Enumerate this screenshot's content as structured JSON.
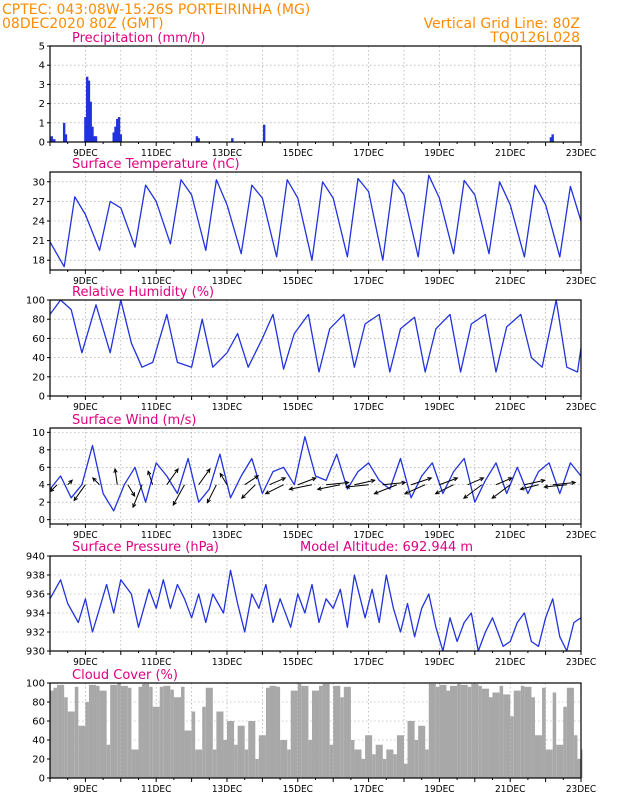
{
  "header": {
    "line1": "CPTEC:  043:08W-15:26S  PORTEIRINHA (MG)",
    "line2": "08DEC2020 80Z (GMT)",
    "grid_line": "Vertical Grid Line: 80Z",
    "code": "TQ0126L028"
  },
  "colors": {
    "header": "#ff8c00",
    "title": "#e0007f",
    "line": "#2233dd",
    "cloud": "#a8a8a8",
    "grid": "#999999"
  },
  "x_axis": {
    "start_day": 8,
    "end_day": 23,
    "tick_labels": [
      "9DEC",
      "11DEC",
      "13DEC",
      "15DEC",
      "17DEC",
      "19DEC",
      "21DEC",
      "23DEC"
    ],
    "tick_days": [
      9,
      11,
      13,
      15,
      17,
      19,
      21,
      23
    ]
  },
  "chart_data": [
    {
      "type": "bar",
      "title": "Precipitation (mm/h)",
      "ylim": [
        0,
        5
      ],
      "yticks": [
        0,
        1,
        2,
        3,
        4,
        5
      ],
      "x": [
        8.05,
        8.12,
        8.4,
        8.45,
        9.0,
        9.05,
        9.1,
        9.15,
        9.2,
        9.25,
        9.3,
        9.8,
        9.85,
        9.9,
        9.95,
        10.0,
        12.15,
        12.2,
        13.15,
        14.05,
        22.15,
        22.2
      ],
      "values": [
        0.3,
        0.15,
        1.0,
        0.4,
        1.3,
        3.4,
        3.2,
        2.1,
        0.8,
        0.3,
        0.3,
        0.5,
        0.8,
        1.2,
        1.3,
        0.4,
        0.3,
        0.2,
        0.2,
        0.9,
        0.25,
        0.4
      ]
    },
    {
      "type": "line",
      "title": "Surface Temperature (nC)",
      "ylim": [
        16.5,
        31.5
      ],
      "yticks": [
        18,
        21,
        24,
        27,
        30
      ],
      "x": [
        8.0,
        8.4,
        8.7,
        9.0,
        9.4,
        9.7,
        10.0,
        10.4,
        10.7,
        11.0,
        11.4,
        11.7,
        12.0,
        12.4,
        12.7,
        13.0,
        13.4,
        13.7,
        14.0,
        14.4,
        14.7,
        15.0,
        15.4,
        15.7,
        16.0,
        16.4,
        16.7,
        17.0,
        17.4,
        17.7,
        18.0,
        18.4,
        18.7,
        19.0,
        19.4,
        19.7,
        20.0,
        20.4,
        20.7,
        21.0,
        21.4,
        21.7,
        22.0,
        22.4,
        22.7,
        23.0
      ],
      "values": [
        20.8,
        17.0,
        27.7,
        25.0,
        19.5,
        27.0,
        26.0,
        20.0,
        29.5,
        27.0,
        20.5,
        30.3,
        28.0,
        19.5,
        30.3,
        26.5,
        19.0,
        29.5,
        27.5,
        18.5,
        30.3,
        27.5,
        18.0,
        30.0,
        27.5,
        18.5,
        30.5,
        28.5,
        18.0,
        30.3,
        28.0,
        18.5,
        31.0,
        27.5,
        19.0,
        30.2,
        28.0,
        19.0,
        30.0,
        26.5,
        18.5,
        29.5,
        26.5,
        18.5,
        29.3,
        24.0
      ]
    },
    {
      "type": "line",
      "title": "Relative Humidity (%)",
      "ylim": [
        0,
        100
      ],
      "yticks": [
        0,
        20,
        40,
        60,
        80,
        100
      ],
      "x": [
        8.0,
        8.3,
        8.6,
        8.9,
        9.3,
        9.7,
        10.0,
        10.3,
        10.6,
        10.9,
        11.3,
        11.6,
        12.0,
        12.3,
        12.6,
        13.0,
        13.3,
        13.6,
        13.8,
        14.0,
        14.3,
        14.6,
        14.9,
        15.3,
        15.6,
        15.9,
        16.3,
        16.6,
        16.9,
        17.3,
        17.6,
        17.9,
        18.3,
        18.6,
        18.9,
        19.3,
        19.6,
        19.9,
        20.3,
        20.6,
        20.9,
        21.3,
        21.6,
        21.9,
        22.3,
        22.6,
        22.9,
        23.0
      ],
      "values": [
        85,
        100,
        90,
        45,
        95,
        45,
        100,
        55,
        30,
        35,
        85,
        35,
        30,
        80,
        30,
        45,
        65,
        30,
        45,
        60,
        85,
        28,
        65,
        85,
        25,
        70,
        85,
        30,
        75,
        85,
        25,
        70,
        82,
        25,
        70,
        85,
        25,
        75,
        85,
        25,
        72,
        85,
        40,
        30,
        100,
        30,
        25,
        50
      ]
    },
    {
      "type": "line",
      "title": "Surface Wind (m/s)",
      "ylim": [
        -0.5,
        10.5
      ],
      "yticks": [
        0,
        2,
        4,
        6,
        8,
        10
      ],
      "x": [
        8.0,
        8.3,
        8.6,
        8.9,
        9.2,
        9.5,
        9.8,
        10.1,
        10.4,
        10.7,
        11.0,
        11.3,
        11.6,
        11.9,
        12.2,
        12.5,
        12.8,
        13.1,
        13.4,
        13.7,
        14.0,
        14.3,
        14.6,
        14.9,
        15.2,
        15.5,
        15.8,
        16.1,
        16.4,
        16.7,
        17.0,
        17.3,
        17.6,
        17.9,
        18.2,
        18.5,
        18.8,
        19.1,
        19.4,
        19.7,
        20.0,
        20.3,
        20.6,
        20.9,
        21.2,
        21.5,
        21.8,
        22.1,
        22.4,
        22.7,
        23.0
      ],
      "values": [
        3.5,
        5.0,
        2.5,
        4.0,
        8.5,
        3.0,
        1.0,
        4.0,
        6.0,
        2.0,
        6.5,
        5.0,
        3.0,
        7.0,
        2.0,
        3.5,
        7.5,
        2.5,
        5.0,
        7.0,
        3.0,
        5.5,
        6.0,
        4.0,
        9.5,
        5.0,
        4.5,
        7.5,
        3.5,
        5.5,
        6.5,
        4.5,
        3.5,
        7.0,
        2.5,
        5.0,
        6.5,
        3.0,
        5.5,
        7.0,
        2.0,
        4.5,
        6.5,
        3.0,
        6.0,
        3.0,
        5.5,
        6.5,
        3.0,
        6.5,
        5.0
      ],
      "vectors": {
        "x": [
          8.2,
          8.5,
          9.0,
          9.4,
          9.9,
          10.2,
          10.6,
          10.9,
          11.3,
          11.8,
          12.2,
          12.7,
          13.0,
          13.5,
          13.8,
          14.2,
          14.6,
          15.0,
          15.4,
          15.8,
          16.2,
          16.6,
          17.0,
          17.4,
          17.8,
          18.2,
          18.6,
          19.0,
          19.4,
          19.8,
          20.2,
          20.6,
          21.0,
          21.4,
          21.8,
          22.2,
          22.6
        ],
        "u": [
          -1.5,
          1.0,
          -2.5,
          -1.5,
          -0.5,
          1.5,
          -2.0,
          -1.0,
          2.5,
          -2.5,
          2.5,
          -2.0,
          -1.5,
          3.0,
          -3.0,
          3.5,
          -4.0,
          4.0,
          -5.0,
          5.0,
          -5.0,
          4.5,
          -5.0,
          5.0,
          -5.0,
          4.5,
          -4.5,
          4.0,
          -4.0,
          3.5,
          -4.0,
          3.5,
          -4.0,
          4.5,
          -4.0,
          5.0,
          -5.0
        ],
        "v": [
          -1.5,
          1.0,
          -3.5,
          1.5,
          3.5,
          -2.5,
          -5.0,
          3.0,
          3.5,
          -4.5,
          3.5,
          -4.0,
          2.5,
          2.0,
          -3.0,
          1.5,
          -2.0,
          1.5,
          -1.0,
          0.5,
          -1.0,
          1.0,
          -0.5,
          0.5,
          -2.0,
          1.5,
          -2.0,
          1.5,
          -2.0,
          1.5,
          -3.0,
          1.5,
          -3.0,
          1.0,
          -1.0,
          0.5,
          -0.5
        ]
      }
    },
    {
      "type": "line",
      "title": "Surface Pressure (hPa)",
      "annotation": "Model Altitude: 692.944 m",
      "ylim": [
        930,
        940
      ],
      "yticks": [
        930,
        932,
        934,
        936,
        938,
        940
      ],
      "x": [
        8.0,
        8.3,
        8.5,
        8.8,
        9.0,
        9.2,
        9.4,
        9.6,
        9.8,
        10.0,
        10.3,
        10.5,
        10.8,
        11.0,
        11.2,
        11.4,
        11.6,
        11.8,
        12.0,
        12.2,
        12.4,
        12.6,
        12.9,
        13.1,
        13.3,
        13.5,
        13.7,
        13.9,
        14.1,
        14.3,
        14.5,
        14.8,
        15.0,
        15.2,
        15.4,
        15.6,
        15.8,
        16.0,
        16.2,
        16.4,
        16.6,
        16.9,
        17.1,
        17.3,
        17.5,
        17.7,
        17.9,
        18.1,
        18.3,
        18.5,
        18.7,
        18.9,
        19.1,
        19.3,
        19.5,
        19.7,
        19.9,
        20.1,
        20.3,
        20.5,
        20.8,
        21.0,
        21.2,
        21.4,
        21.6,
        21.8,
        22.0,
        22.2,
        22.4,
        22.6,
        22.8,
        23.0
      ],
      "values": [
        935.5,
        937.5,
        935.0,
        933.0,
        935.5,
        932.0,
        934.5,
        937.0,
        934.0,
        937.5,
        936.0,
        932.5,
        936.5,
        934.5,
        937.5,
        934.5,
        937.0,
        935.5,
        933.5,
        936.0,
        933.0,
        936.0,
        934.0,
        938.5,
        935.0,
        932.0,
        936.0,
        934.5,
        937.0,
        933.0,
        935.5,
        932.5,
        936.0,
        934.0,
        937.0,
        933.0,
        935.5,
        934.5,
        936.5,
        932.5,
        938.0,
        933.5,
        936.5,
        933.0,
        938.0,
        934.5,
        932.0,
        935.0,
        931.5,
        934.5,
        936.0,
        932.5,
        930.0,
        933.5,
        931.0,
        933.0,
        934.0,
        930.0,
        932.0,
        933.5,
        930.5,
        931.0,
        933.0,
        934.0,
        931.0,
        930.5,
        933.5,
        935.5,
        931.5,
        930.0,
        933.0,
        933.5
      ]
    },
    {
      "type": "area",
      "title": "Cloud Cover (%)",
      "ylim": [
        0,
        100
      ],
      "yticks": [
        0,
        20,
        40,
        60,
        80,
        100
      ],
      "x": [
        8.0,
        8.1,
        8.2,
        8.4,
        8.5,
        8.7,
        8.8,
        9.0,
        9.1,
        9.3,
        9.4,
        9.6,
        9.7,
        9.9,
        10.0,
        10.2,
        10.3,
        10.5,
        10.6,
        10.8,
        10.9,
        11.1,
        11.2,
        11.4,
        11.5,
        11.7,
        11.8,
        12.0,
        12.1,
        12.3,
        12.4,
        12.6,
        12.7,
        12.9,
        13.0,
        13.2,
        13.3,
        13.5,
        13.6,
        13.8,
        13.9,
        14.1,
        14.2,
        14.4,
        14.5,
        14.7,
        14.8,
        15.0,
        15.1,
        15.3,
        15.4,
        15.6,
        15.7,
        15.9,
        16.0,
        16.2,
        16.3,
        16.5,
        16.6,
        16.8,
        16.9,
        17.1,
        17.2,
        17.4,
        17.5,
        17.7,
        17.8,
        18.0,
        18.1,
        18.3,
        18.4,
        18.6,
        18.7,
        18.9,
        19.0,
        19.2,
        19.3,
        19.5,
        19.6,
        19.8,
        19.9,
        20.1,
        20.2,
        20.4,
        20.5,
        20.7,
        20.8,
        21.0,
        21.1,
        21.3,
        21.4,
        21.6,
        21.7,
        21.9,
        22.0,
        22.2,
        22.3,
        22.5,
        22.6,
        22.8,
        22.9,
        23.0
      ],
      "values": [
        92,
        95,
        98,
        85,
        70,
        96,
        55,
        80,
        98,
        97,
        92,
        35,
        98,
        100,
        97,
        95,
        30,
        96,
        99,
        96,
        75,
        96,
        97,
        93,
        85,
        96,
        50,
        70,
        30,
        75,
        95,
        30,
        70,
        40,
        60,
        35,
        55,
        30,
        60,
        20,
        45,
        95,
        97,
        96,
        40,
        30,
        92,
        99,
        97,
        40,
        92,
        97,
        99,
        35,
        97,
        85,
        96,
        40,
        30,
        20,
        45,
        25,
        35,
        20,
        30,
        25,
        45,
        15,
        60,
        40,
        55,
        30,
        99,
        96,
        98,
        92,
        97,
        99,
        98,
        96,
        99,
        97,
        94,
        85,
        90,
        97,
        88,
        65,
        92,
        97,
        96,
        85,
        45,
        95,
        30,
        90,
        35,
        75,
        95,
        45,
        20,
        30
      ]
    }
  ]
}
